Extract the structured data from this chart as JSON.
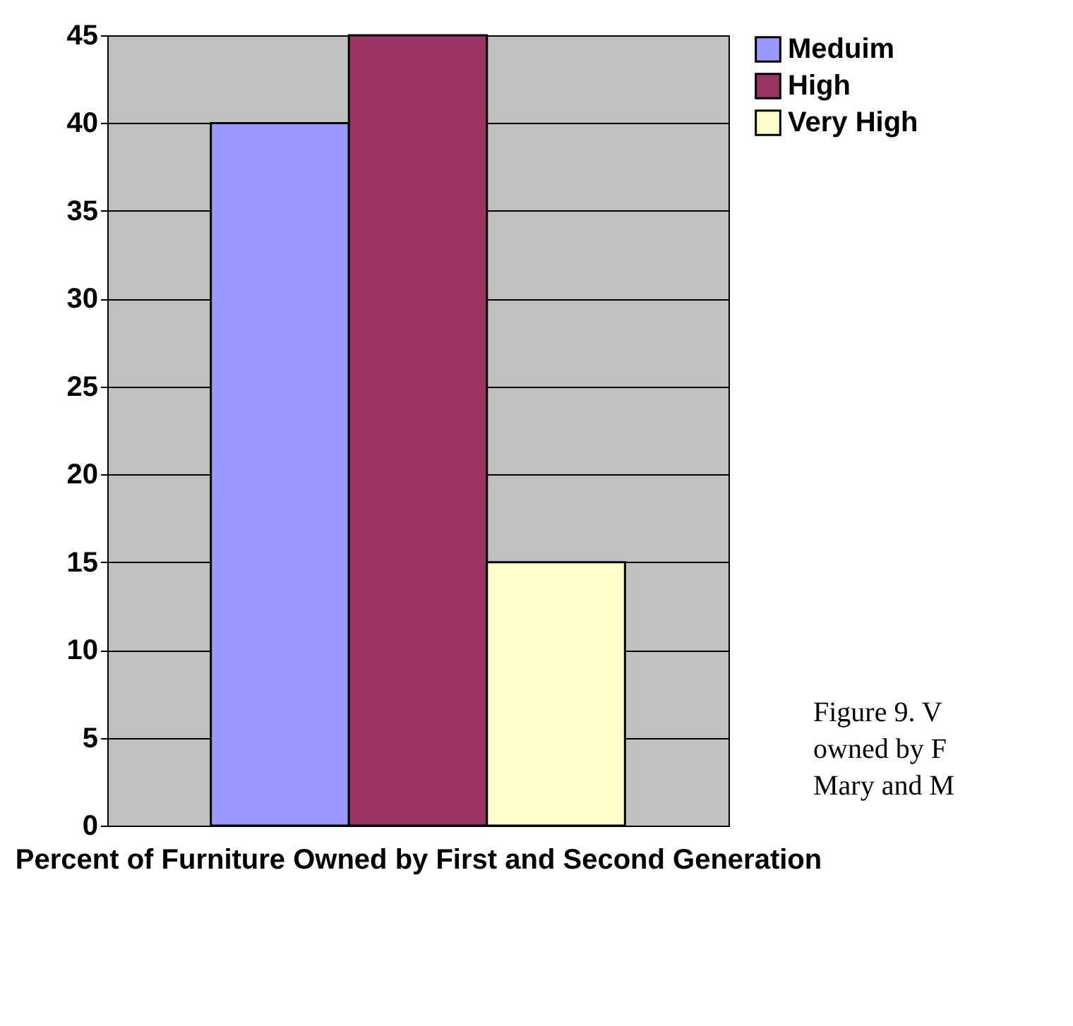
{
  "chart_data": {
    "type": "bar",
    "xlabel": "Percent of Furniture Owned by First and Second Generation",
    "categories": [
      null
    ],
    "series": [
      {
        "name": "Meduim",
        "color": "#9999ff",
        "values": [
          40
        ]
      },
      {
        "name": "High",
        "color": "#993366",
        "values": [
          45
        ]
      },
      {
        "name": "Very High",
        "color": "#ffffcc",
        "values": [
          15
        ]
      }
    ],
    "ylim": [
      0,
      45
    ],
    "yticks": [
      0,
      5,
      10,
      15,
      20,
      25,
      30,
      35,
      40,
      45
    ],
    "grid": "y",
    "legend": "right",
    "annotations": [
      "Figure 9. V\nowned by F\nMary and M"
    ]
  }
}
